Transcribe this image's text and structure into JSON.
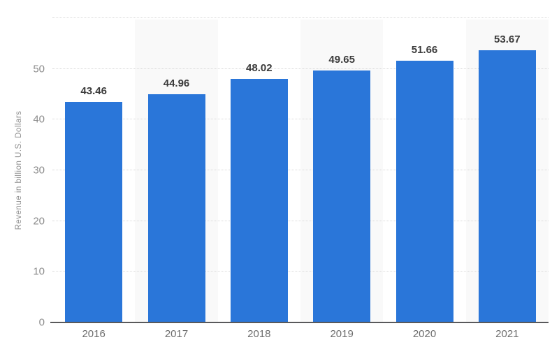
{
  "chart_data": {
    "type": "bar",
    "title": "",
    "categories": [
      "2016",
      "2017",
      "2018",
      "2019",
      "2020",
      "2021"
    ],
    "values": [
      43.46,
      44.96,
      48.02,
      49.65,
      51.66,
      53.67
    ],
    "data_labels": [
      "43.46",
      "44.96",
      "48.02",
      "49.65",
      "51.66",
      "53.67"
    ],
    "xlabel": "",
    "ylabel": "Revenue in billion U.S. Dollars",
    "ylim": [
      0,
      60
    ],
    "yticks": [
      0,
      10,
      20,
      30,
      40,
      50
    ],
    "gridline_values": [
      10,
      20,
      30,
      40,
      50,
      60
    ],
    "grid": "horizontal-dotted",
    "legend": "none",
    "striped_category_indices": [
      1,
      3,
      5
    ]
  },
  "colors": {
    "bar": "#2a76d9",
    "column_stripe": "#f9f9f9",
    "gridline": "#d9d9d9",
    "axis_line": "#59595b",
    "tick_label": "#8c8c8c",
    "category_label": "#6e6e6e",
    "data_label": "#3b3b3b",
    "axis_title": "#8f8f8f",
    "background": "#ffffff"
  }
}
